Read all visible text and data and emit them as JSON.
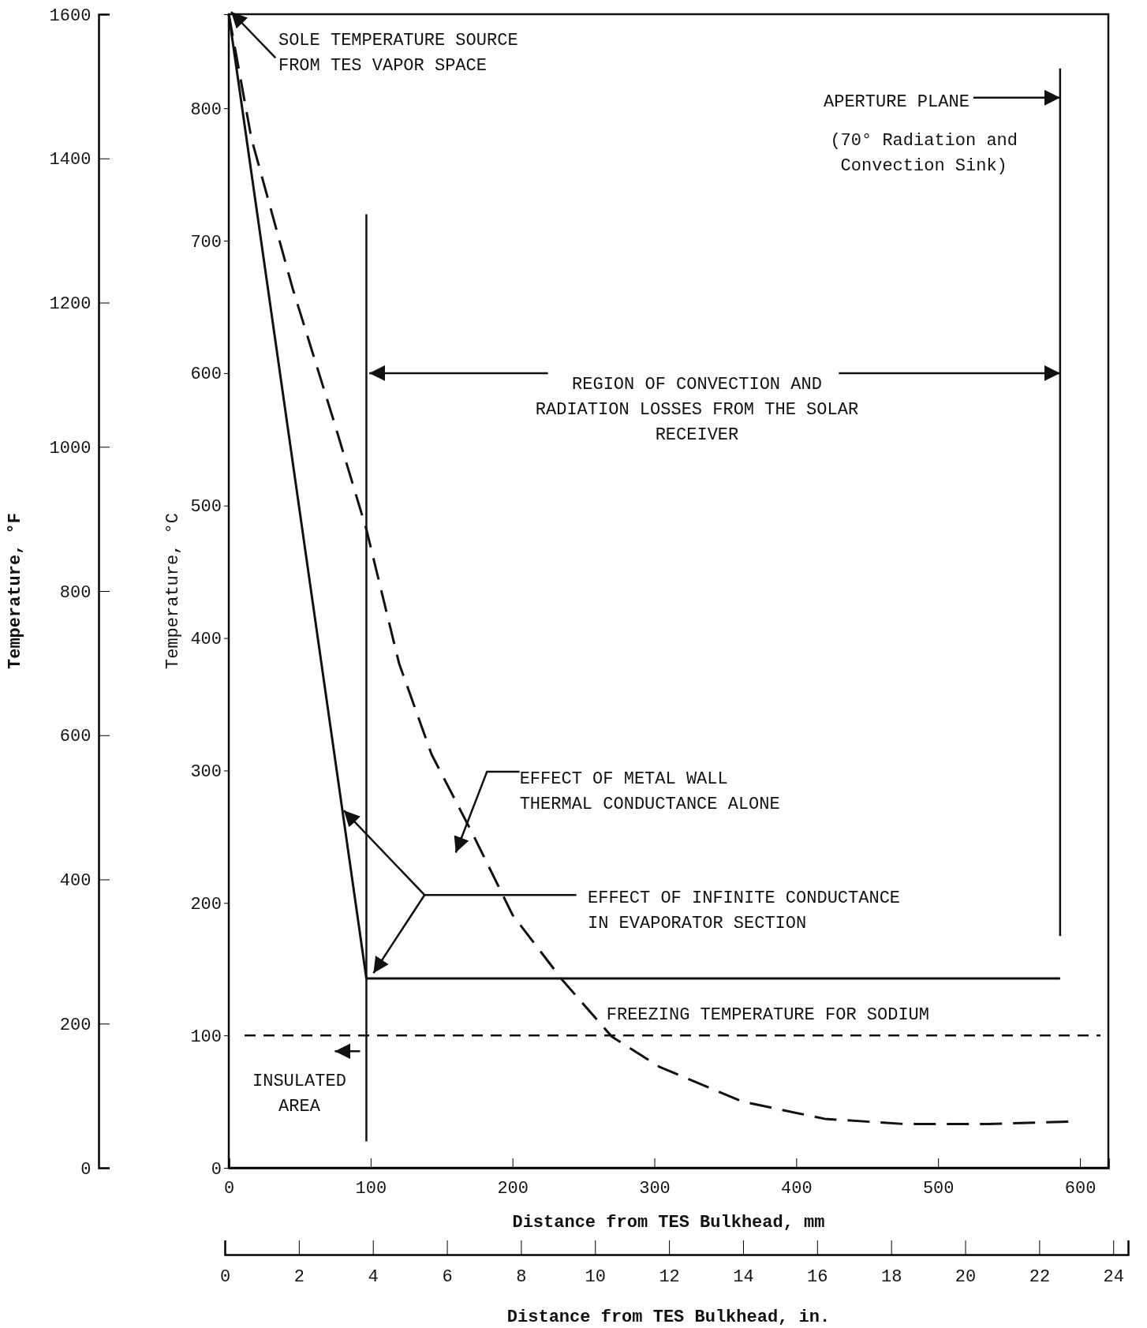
{
  "chart_data": {
    "type": "line",
    "xlabel": "Distance from TES Bulkhead, mm",
    "ylabel": "Temperature, °C",
    "y2label": "Temperature, °F",
    "x2label": "Distance from TES Bulkhead, in.",
    "xlim": [
      0,
      620
    ],
    "xticks": [
      0,
      100,
      200,
      300,
      400,
      500,
      600
    ],
    "x2lim": [
      0,
      24.4
    ],
    "x2ticks": [
      0,
      2,
      4,
      6,
      8,
      10,
      12,
      14,
      16,
      18,
      20,
      22,
      24
    ],
    "ylim": [
      0,
      871
    ],
    "yticks": [
      0,
      100,
      200,
      300,
      400,
      500,
      600,
      700,
      800
    ],
    "y2lim": [
      0,
      1600
    ],
    "y2ticks": [
      0,
      200,
      400,
      600,
      800,
      1000,
      1200,
      1400,
      1600
    ],
    "series": [
      {
        "color": "#111111",
        "line_style": "solid",
        "x": [
          0,
          97,
          586
        ],
        "values": [
          871,
          143,
          143
        ]
      },
      {
        "color": "#111111",
        "line_style": "dashed",
        "x": [
          0,
          16,
          45,
          74,
          97,
          120,
          143,
          172,
          200,
          235,
          270,
          304,
          362,
          420,
          477,
          535,
          595
        ],
        "values": [
          871,
          777,
          664,
          564,
          482,
          381,
          312,
          252,
          191,
          142,
          99,
          76,
          50,
          37,
          33,
          33,
          35
        ]
      }
    ],
    "ref_lines": [
      {
        "axis": "y",
        "value": 100,
        "label": "FREEZING TEMPERATURE FOR SODIUM",
        "line_style": "dashed",
        "color": "#111111"
      },
      {
        "axis": "x",
        "value": 97,
        "label": "INSULATED AREA",
        "line_style": "solid",
        "color": "#111111"
      },
      {
        "axis": "x",
        "value": 586,
        "label": "APERTURE PLANE",
        "line_style": "solid",
        "color": "#111111"
      }
    ],
    "annotations": [
      {
        "text": "SOLE TEMPERATURE SOURCE FROM TES VAPOR SPACE",
        "x": 0,
        "y": 871
      },
      "(70° Radiation and Convection Sink)",
      {
        "text": "REGION OF CONVECTION AND RADIATION LOSSES FROM THE SOLAR RECEIVER",
        "x": 586,
        "y": 600
      },
      "EFFECT OF METAL WALL THERMAL CONDUCTANCE ALONE",
      {
        "text": "EFFECT OF INFINITE CONDUCTANCE IN EVAPORATOR SECTION",
        "x": 80,
        "y": 271
      }
    ]
  }
}
